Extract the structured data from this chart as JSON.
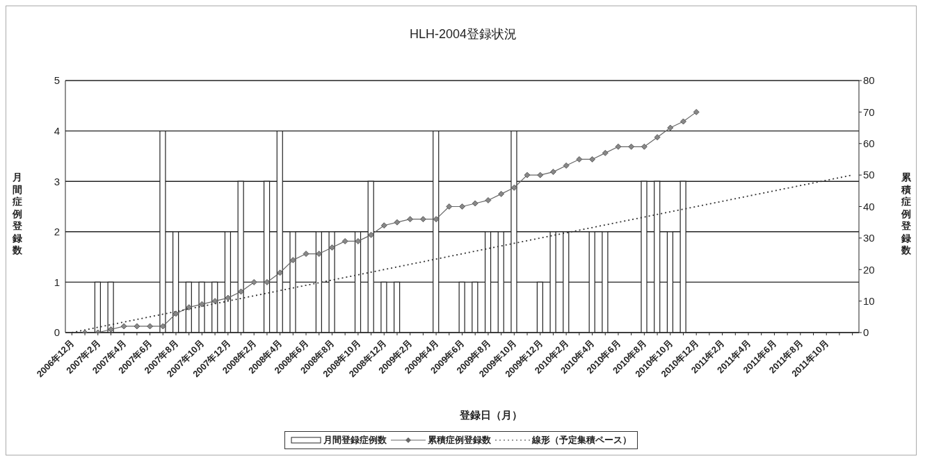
{
  "chart_data": {
    "type": "bar",
    "title": "HLH-2004登録状況",
    "xlabel": "登録日（月）",
    "ylabel": "月間症例登録数",
    "y2label": "累積症例登録数",
    "categories": [
      "2006年12月",
      null,
      "2007年2月",
      null,
      "2007年4月",
      null,
      "2007年6月",
      null,
      "2007年8月",
      null,
      "2007年10月",
      null,
      "2007年12月",
      null,
      "2008年2月",
      null,
      "2008年4月",
      null,
      "2008年6月",
      null,
      "2008年8月",
      null,
      "2008年10月",
      null,
      "2008年12月",
      null,
      "2009年2月",
      null,
      "2009年4月",
      null,
      "2009年6月",
      null,
      "2009年8月",
      null,
      "2009年10月",
      null,
      "2009年12月",
      null,
      "2010年2月",
      null,
      "2010年4月",
      null,
      "2010年6月",
      null,
      "2010年8月",
      null,
      "2010年10月",
      null,
      "2010年12月",
      null,
      "2011年2月",
      null,
      "2011年4月",
      null,
      "2011年6月",
      null,
      "2011年8月",
      null,
      "2011年10月",
      null,
      null
    ],
    "series": [
      {
        "name": "月間登録症例数",
        "color": "#ffffff",
        "values": [
          0,
          0,
          1,
          1,
          0,
          0,
          0,
          4,
          2,
          1,
          1,
          1,
          2,
          3,
          0,
          3,
          4,
          2,
          0,
          2,
          2,
          0,
          2,
          3,
          1,
          1,
          0,
          0,
          4,
          0,
          1,
          1,
          2,
          2,
          4,
          0,
          1,
          2,
          2,
          0,
          2,
          2,
          0,
          0,
          3,
          3,
          2,
          3,
          0,
          null,
          null,
          null,
          null,
          null,
          null,
          null,
          null,
          null,
          null,
          null,
          null
        ]
      },
      {
        "name": "累積症例登録数",
        "type": "line",
        "axis": "y2",
        "color": "#666666",
        "marker": "diamond",
        "values": [
          null,
          0,
          0,
          1,
          2,
          2,
          2,
          2,
          6,
          8,
          9,
          10,
          11,
          13,
          16,
          16,
          19,
          23,
          25,
          25,
          27,
          29,
          29,
          31,
          34,
          35,
          36,
          36,
          36,
          40,
          40,
          41,
          42,
          44,
          46,
          50,
          50,
          51,
          53,
          55,
          55,
          57,
          59,
          59,
          59,
          62,
          65,
          67,
          70,
          null,
          null,
          null,
          null,
          null,
          null,
          null,
          null,
          null,
          null,
          null,
          null
        ]
      },
      {
        "name": "線形（予定集積ペース）",
        "type": "line",
        "axis": "y2",
        "color": "#333333",
        "line_style": "dotted",
        "marker": "none",
        "values": [
          0,
          null,
          null,
          null,
          null,
          null,
          null,
          null,
          null,
          null,
          null,
          null,
          null,
          null,
          null,
          null,
          null,
          null,
          null,
          null,
          null,
          null,
          null,
          null,
          null,
          null,
          null,
          null,
          null,
          null,
          null,
          null,
          null,
          null,
          null,
          null,
          null,
          null,
          null,
          null,
          null,
          null,
          null,
          null,
          null,
          null,
          null,
          null,
          null,
          null,
          null,
          null,
          null,
          null,
          null,
          null,
          null,
          null,
          null,
          null,
          50
        ]
      }
    ],
    "ylim": [
      0,
      5
    ],
    "yticks": [
      0,
      1,
      2,
      3,
      4,
      5
    ],
    "y2lim": [
      0,
      80
    ],
    "y2ticks": [
      0,
      10,
      20,
      30,
      40,
      50,
      60,
      70,
      80
    ],
    "grid": "y",
    "legend": "bottom"
  }
}
